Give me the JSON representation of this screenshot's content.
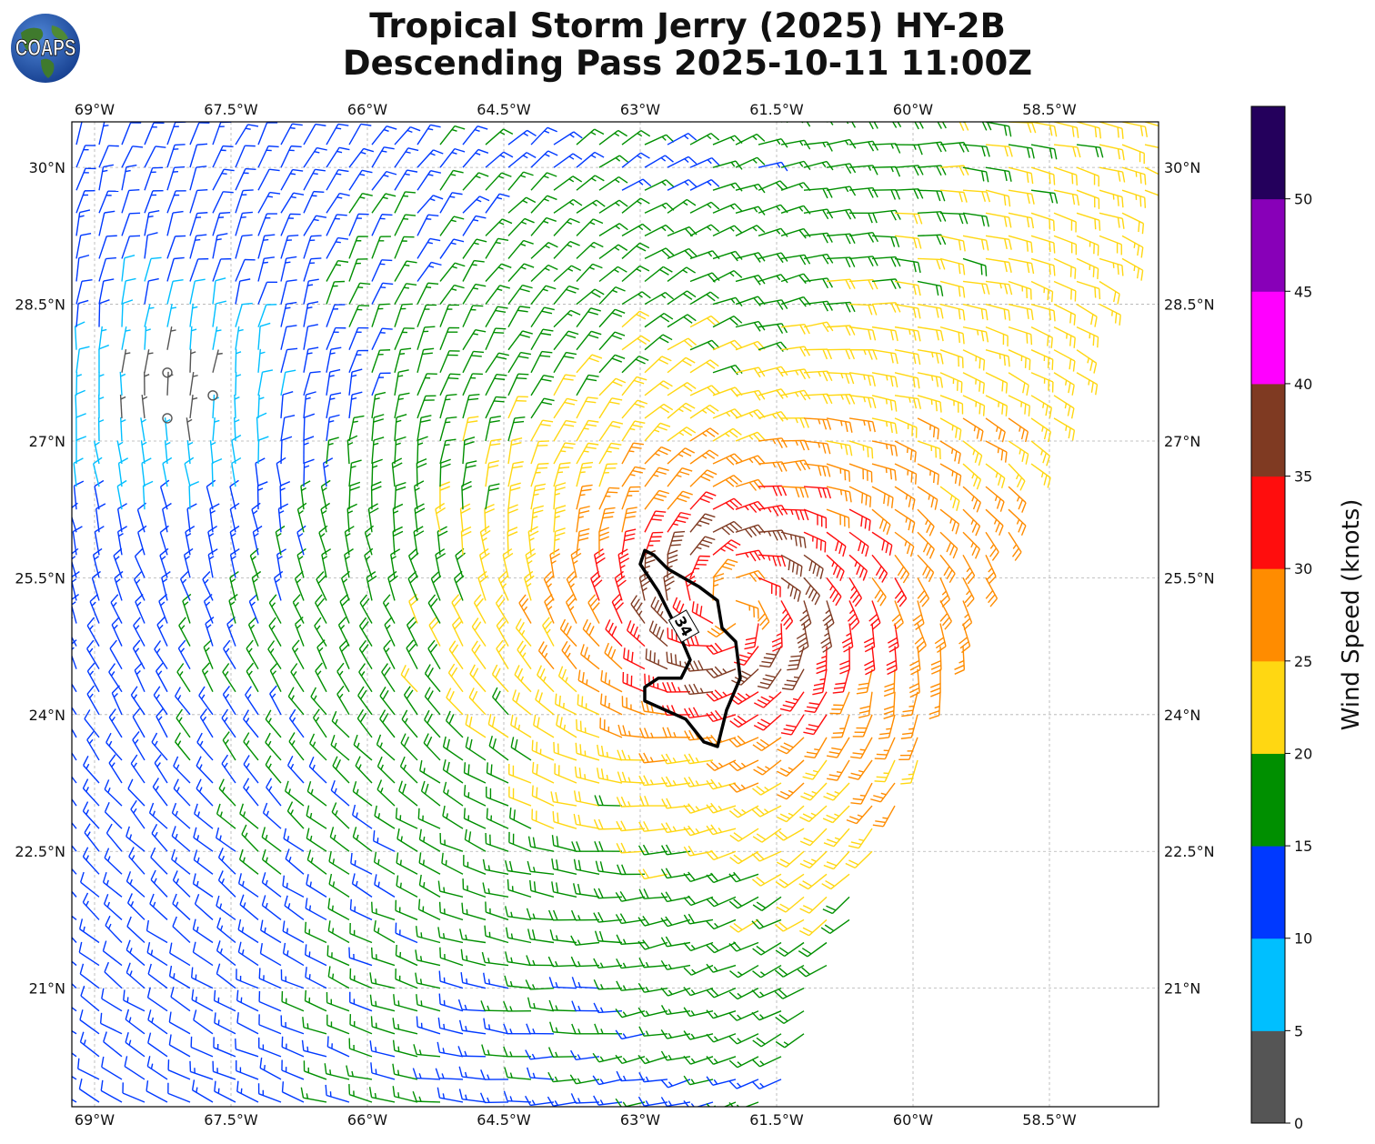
{
  "header": {
    "logo_text": "COAPS",
    "title_line1": "Tropical Storm Jerry (2025) HY-2B",
    "title_line2": "Descending Pass 2025-10-11 11:00Z"
  },
  "chart_data": {
    "type": "wind-barb map",
    "title": "Tropical Storm Jerry (2025) HY-2B Descending Pass 2025-10-11 11:00Z",
    "x_axis": {
      "lon_range": [
        -69.25,
        -57.3
      ],
      "ticks": [
        "69°W",
        "67.5°W",
        "66°W",
        "64.5°W",
        "63°W",
        "61.5°W",
        "60°W",
        "58.5°W"
      ]
    },
    "y_axis": {
      "lat_range": [
        19.7,
        30.5
      ],
      "ticks": [
        "30°N",
        "28.5°N",
        "27°N",
        "25.5°N",
        "24°N",
        "22.5°N",
        "21°N"
      ]
    },
    "grid": true,
    "colorbar": {
      "label": "Wind Speed (knots)",
      "ticks": [
        "0",
        "5",
        "10",
        "15",
        "20",
        "25",
        "30",
        "35",
        "40",
        "45",
        "50"
      ],
      "bins": [
        {
          "min": 0,
          "max": 5,
          "color": "#555555"
        },
        {
          "min": 5,
          "max": 10,
          "color": "#00bfff"
        },
        {
          "min": 10,
          "max": 15,
          "color": "#0039ff"
        },
        {
          "min": 15,
          "max": 20,
          "color": "#008f00"
        },
        {
          "min": 20,
          "max": 25,
          "color": "#ffd712"
        },
        {
          "min": 25,
          "max": 30,
          "color": "#ff8c00"
        },
        {
          "min": 30,
          "max": 35,
          "color": "#ff0d0d"
        },
        {
          "min": 35,
          "max": 40,
          "color": "#7f3a22"
        },
        {
          "min": 40,
          "max": 45,
          "color": "#ff00ff"
        },
        {
          "min": 45,
          "max": 50,
          "color": "#8800b8"
        },
        {
          "min": 50,
          "max": 55,
          "color": "#24005c"
        }
      ]
    },
    "swath_edges": {
      "east": [
        [
          -57.15,
          30.3
        ],
        [
          -61.5,
          19.7
        ]
      ]
    },
    "storm_center": {
      "lon": -62.0,
      "lat": 25.2
    },
    "contour": {
      "value": 34,
      "label": "34",
      "points": [
        [
          -62.85,
          25.75
        ],
        [
          -62.7,
          25.6
        ],
        [
          -62.35,
          25.4
        ],
        [
          -62.15,
          25.25
        ],
        [
          -62.1,
          24.95
        ],
        [
          -61.95,
          24.8
        ],
        [
          -61.9,
          24.4
        ],
        [
          -62.05,
          24.05
        ],
        [
          -62.15,
          23.65
        ],
        [
          -62.3,
          23.7
        ],
        [
          -62.5,
          23.95
        ],
        [
          -62.95,
          24.15
        ],
        [
          -62.95,
          24.3
        ],
        [
          -62.8,
          24.4
        ],
        [
          -62.55,
          24.4
        ],
        [
          -62.45,
          24.6
        ],
        [
          -62.6,
          24.95
        ],
        [
          -62.8,
          25.35
        ],
        [
          -63.0,
          25.65
        ],
        [
          -62.95,
          25.8
        ]
      ]
    }
  }
}
